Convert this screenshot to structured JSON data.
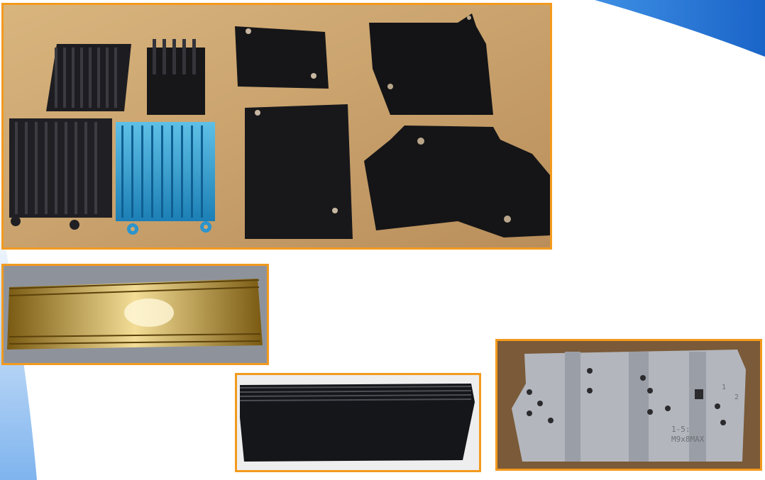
{
  "slide": {
    "background": "#ffffff",
    "accent_color": "#f39a1e",
    "decoration_color": "#1f6fd1"
  },
  "photos": {
    "main": {
      "subject": "heatsinks-and-black-enclosures"
    },
    "gold": {
      "subject": "gold-anodized-extrusion"
    },
    "black": {
      "subject": "black-anodized-extrusion"
    },
    "gray": {
      "subject": "machined-aluminum-plate",
      "engraving": {
        "line1": "1-5:",
        "line2": "M9x8MAX",
        "mark_a": "1",
        "mark_b": "2"
      }
    }
  }
}
